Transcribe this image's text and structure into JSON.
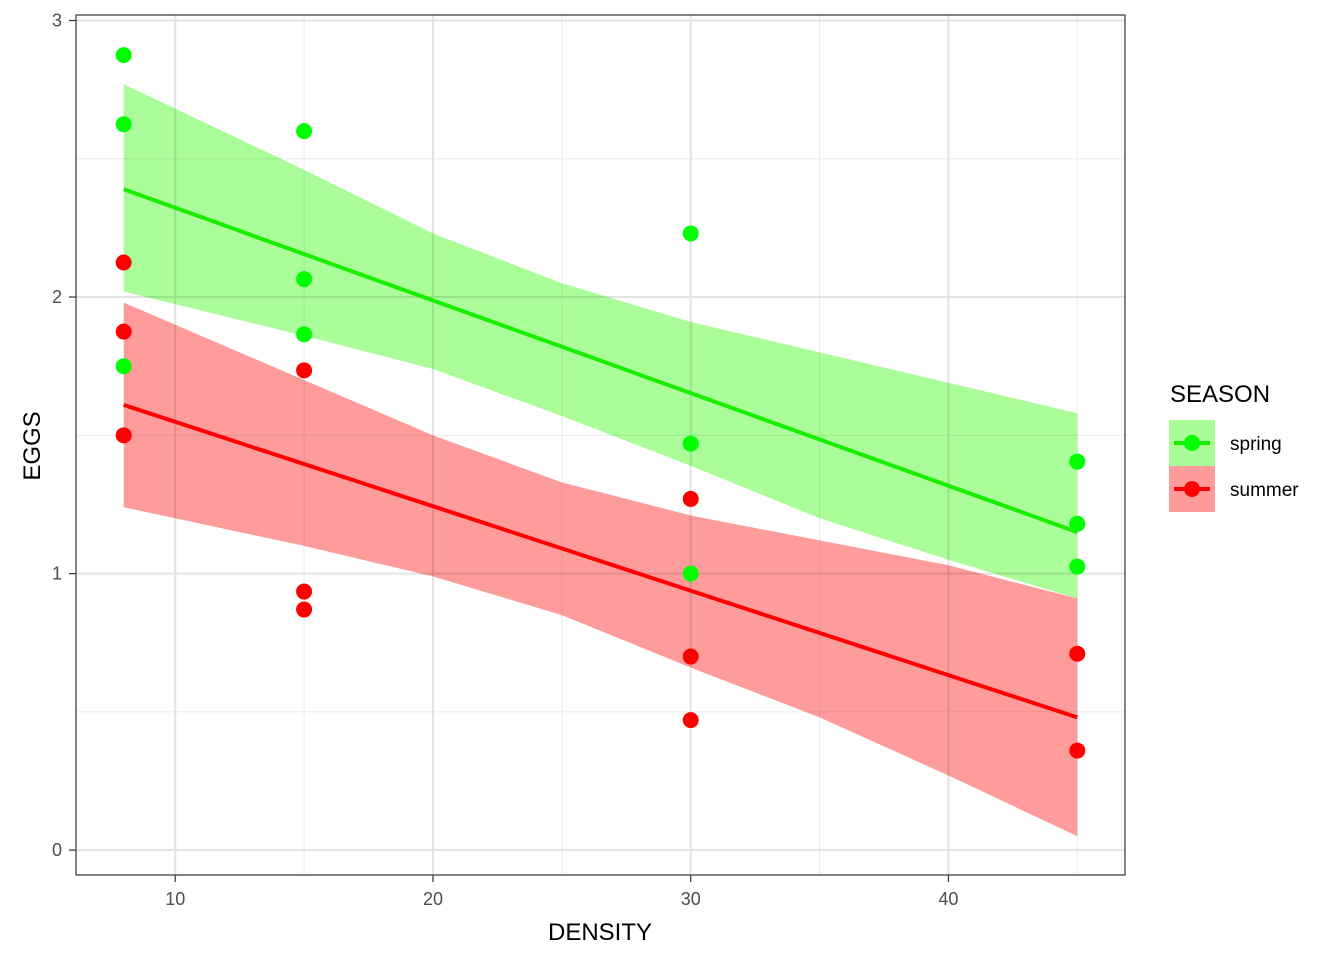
{
  "chart_data": {
    "type": "scatter",
    "xlabel": "DENSITY",
    "ylabel": "EGGS",
    "xlim": [
      6.15,
      46.85
    ],
    "ylim": [
      -0.09,
      3.02
    ],
    "x_ticks": [
      10,
      20,
      30,
      40
    ],
    "x_tick_labels": [
      "10",
      "20",
      "30",
      "40"
    ],
    "x_minor_ticks": [
      15,
      25,
      35,
      45
    ],
    "y_ticks": [
      0,
      1,
      2,
      3
    ],
    "y_tick_labels": [
      "0",
      "1",
      "2",
      "3"
    ],
    "y_minor_ticks": [
      0.5,
      1.5,
      2.5
    ],
    "grid": true,
    "legend": {
      "title": "SEASON",
      "position": "right",
      "entries": [
        "spring",
        "summer"
      ]
    },
    "series": [
      {
        "name": "spring",
        "color": "#00ff00",
        "line_color": "#1aee00",
        "ribbon_color": "#a8fd97",
        "points": [
          {
            "x": 8,
            "y": 2.875
          },
          {
            "x": 8,
            "y": 2.625
          },
          {
            "x": 8,
            "y": 1.75
          },
          {
            "x": 15,
            "y": 2.6
          },
          {
            "x": 15,
            "y": 2.065
          },
          {
            "x": 15,
            "y": 1.865
          },
          {
            "x": 30,
            "y": 2.23
          },
          {
            "x": 30,
            "y": 1.47
          },
          {
            "x": 30,
            "y": 1.0
          },
          {
            "x": 45,
            "y": 1.405
          },
          {
            "x": 45,
            "y": 1.18
          },
          {
            "x": 45,
            "y": 1.025
          }
        ],
        "fit": {
          "x": [
            8,
            45
          ],
          "y": [
            2.39,
            1.15
          ]
        },
        "ribbon": {
          "x": [
            8,
            15,
            20,
            25,
            30,
            35,
            40,
            45
          ],
          "upper": [
            2.77,
            2.46,
            2.23,
            2.05,
            1.91,
            1.8,
            1.69,
            1.58
          ],
          "lower": [
            2.02,
            1.86,
            1.74,
            1.57,
            1.39,
            1.2,
            1.05,
            0.91
          ]
        }
      },
      {
        "name": "summer",
        "color": "#ff0000",
        "line_color": "#ff0000",
        "ribbon_color": "#fe9a9a",
        "points": [
          {
            "x": 8,
            "y": 2.125
          },
          {
            "x": 8,
            "y": 1.875
          },
          {
            "x": 8,
            "y": 1.5
          },
          {
            "x": 15,
            "y": 1.735
          },
          {
            "x": 15,
            "y": 0.935
          },
          {
            "x": 15,
            "y": 0.87
          },
          {
            "x": 30,
            "y": 1.27
          },
          {
            "x": 30,
            "y": 0.7
          },
          {
            "x": 30,
            "y": 0.47
          },
          {
            "x": 45,
            "y": 0.71
          },
          {
            "x": 45,
            "y": 0.36
          }
        ],
        "fit": {
          "x": [
            8,
            45
          ],
          "y": [
            1.61,
            0.48
          ]
        },
        "ribbon": {
          "x": [
            8,
            15,
            20,
            25,
            30,
            35,
            40,
            45
          ],
          "upper": [
            1.98,
            1.7,
            1.5,
            1.33,
            1.21,
            1.12,
            1.03,
            0.91
          ],
          "lower": [
            1.24,
            1.1,
            0.99,
            0.85,
            0.66,
            0.48,
            0.27,
            0.05
          ]
        }
      }
    ]
  }
}
